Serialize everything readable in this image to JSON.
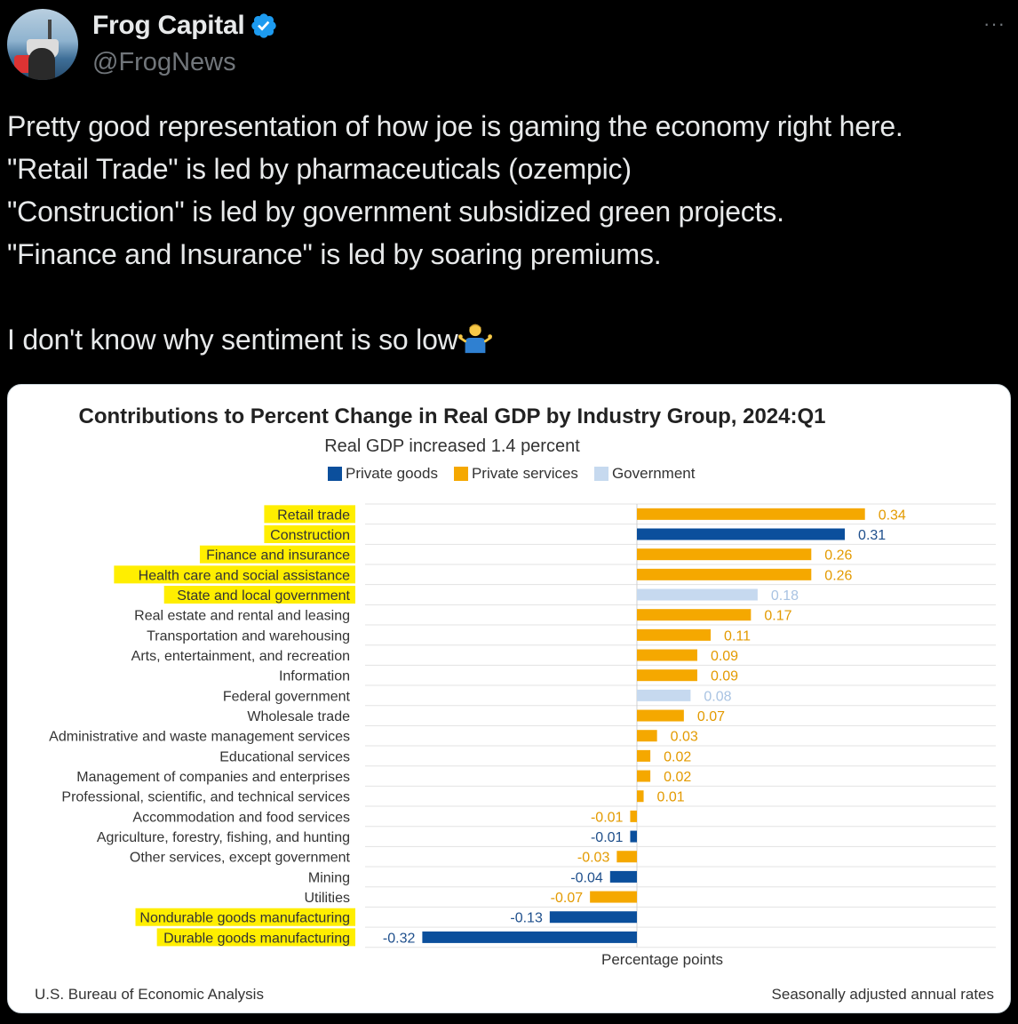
{
  "tweet": {
    "display_name": "Frog Capital",
    "handle": "@FrogNews",
    "more_label": "···",
    "text": "Pretty good representation of how joe is gaming the economy right here.\n\"Retail Trade\" is led by pharmaceuticals (ozempic)\n\"Construction\" is led by government subsidized green projects.\n\"Finance and Insurance\" is led by soaring premiums.\n\nI don't know why sentiment is so low",
    "icons": {
      "avatar": "profile-photo",
      "badge": "verified-badge-icon",
      "shrug": "person-shrugging-emoji"
    }
  },
  "card": {
    "source": "U.S. Bureau of Economic Analysis",
    "note": "Seasonally adjusted annual rates"
  },
  "colors": {
    "private_goods": "#0b4f9c",
    "private_services": "#f5a800",
    "government": "#c6d9ef",
    "highlight": "#ffee00"
  },
  "chart_data": {
    "type": "bar",
    "orientation": "horizontal",
    "title": "Contributions to Percent Change in Real GDP by Industry Group, 2024:Q1",
    "subtitle": "Real GDP increased 1.4 percent",
    "xlabel": "Percentage points",
    "legend": [
      "Private goods",
      "Private services",
      "Government"
    ],
    "legend_position": "top",
    "grid": true,
    "xlim": [
      -0.4,
      0.45
    ],
    "categories": [
      "Retail trade",
      "Construction",
      "Finance and insurance",
      "Health care and social assistance",
      "State and local government",
      "Real estate and rental and leasing",
      "Transportation and warehousing",
      "Arts, entertainment, and recreation",
      "Information",
      "Federal government",
      "Wholesale trade",
      "Administrative and waste management services",
      "Educational services",
      "Management of companies and enterprises",
      "Professional, scientific, and technical services",
      "Accommodation and food services",
      "Agriculture, forestry, fishing, and hunting",
      "Other services, except government",
      "Mining",
      "Utilities",
      "Nondurable goods manufacturing",
      "Durable goods manufacturing"
    ],
    "values": [
      0.34,
      0.31,
      0.26,
      0.26,
      0.18,
      0.17,
      0.11,
      0.09,
      0.09,
      0.08,
      0.07,
      0.03,
      0.02,
      0.02,
      0.01,
      -0.01,
      -0.01,
      -0.03,
      -0.04,
      -0.07,
      -0.13,
      -0.32
    ],
    "value_labels": [
      "0.34",
      "0.31",
      "0.26",
      "0.26",
      "0.18",
      "0.17",
      "0.11",
      "0.09",
      "0.09",
      "0.08",
      "0.07",
      "0.03",
      "0.02",
      "0.02",
      "0.01",
      "-0.01",
      "-0.01",
      "-0.03",
      "-0.04",
      "-0.07",
      "-0.13",
      "-0.32"
    ],
    "groups": [
      "Private services",
      "Private goods",
      "Private services",
      "Private services",
      "Government",
      "Private services",
      "Private services",
      "Private services",
      "Private services",
      "Government",
      "Private services",
      "Private services",
      "Private services",
      "Private services",
      "Private services",
      "Private services",
      "Private goods",
      "Private services",
      "Private goods",
      "Private services",
      "Private goods",
      "Private goods"
    ],
    "highlighted": [
      true,
      true,
      true,
      true,
      true,
      false,
      false,
      false,
      false,
      false,
      false,
      false,
      false,
      false,
      false,
      false,
      false,
      false,
      false,
      false,
      true,
      true
    ]
  }
}
